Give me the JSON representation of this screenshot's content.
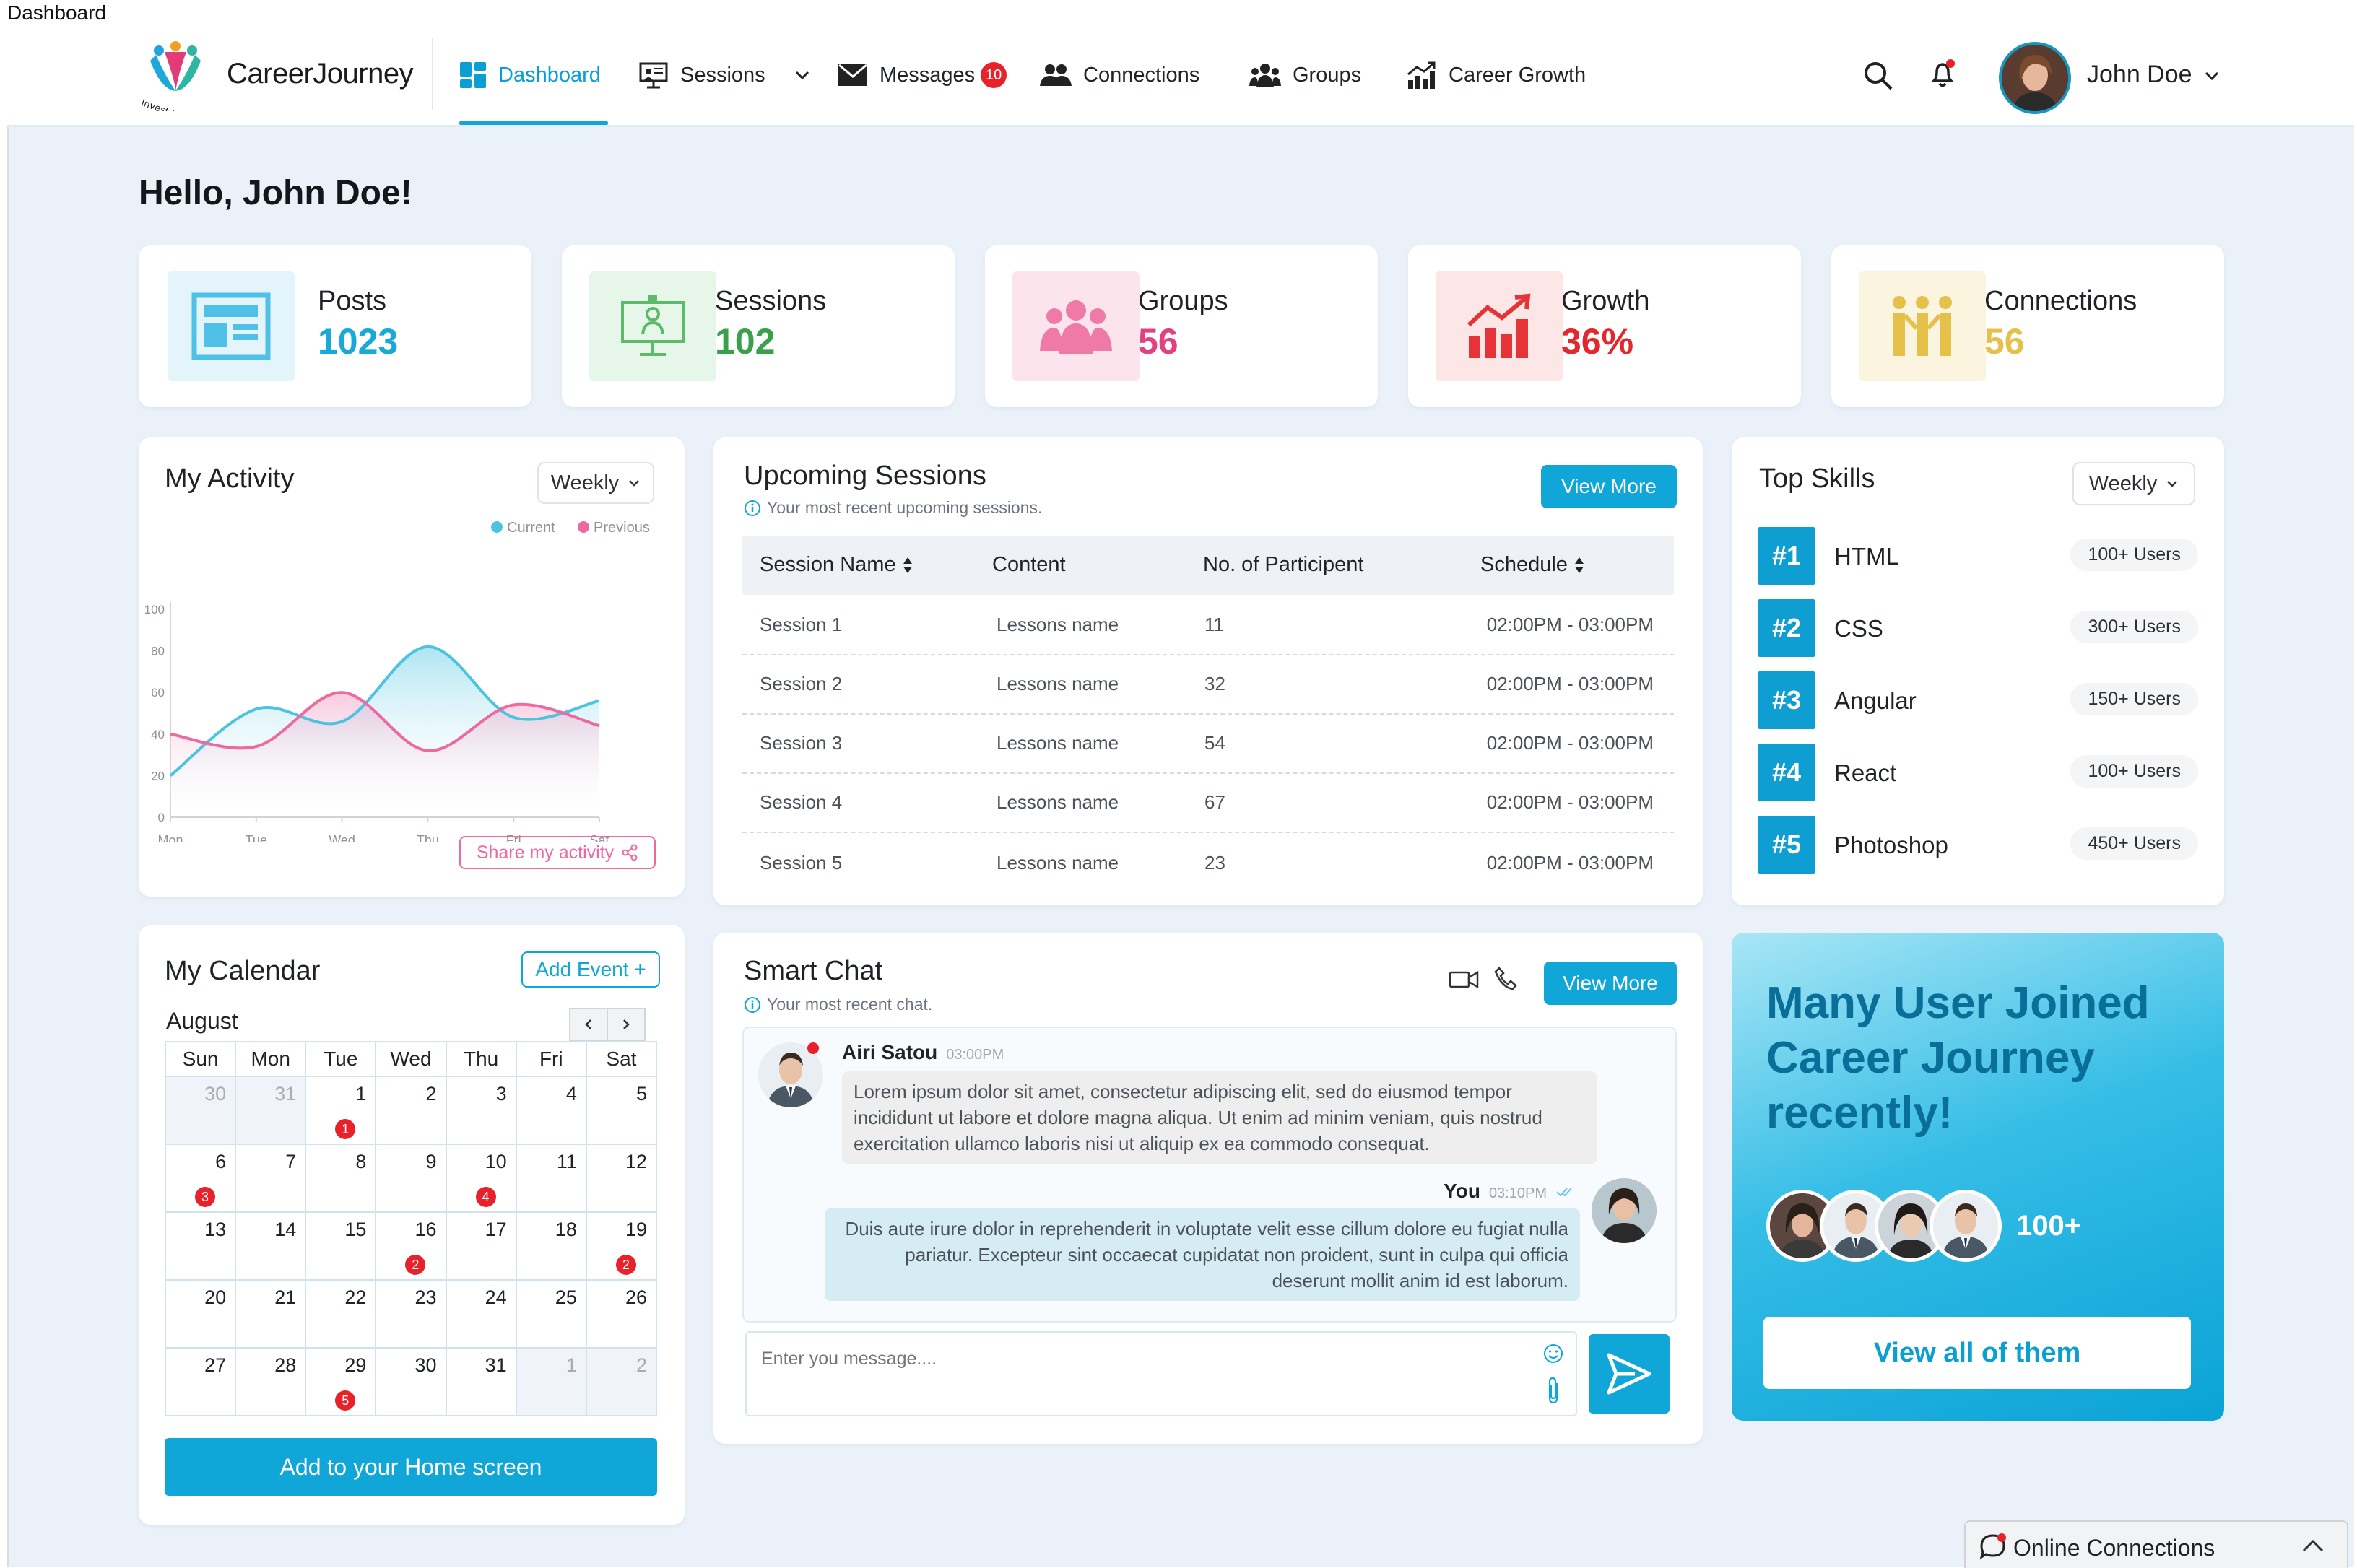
{
  "window": {
    "title": "Dashboard"
  },
  "brand": {
    "name": "CareerJourney",
    "tagline": "Invest to Impact"
  },
  "nav": {
    "items": [
      {
        "label": "Dashboard"
      },
      {
        "label": "Sessions"
      },
      {
        "label": "Messages",
        "badge": "10"
      },
      {
        "label": "Connections"
      },
      {
        "label": "Groups"
      },
      {
        "label": "Career Growth"
      }
    ]
  },
  "user": {
    "name": "John Doe"
  },
  "greeting": "Hello, John Doe!",
  "stats": [
    {
      "label": "Posts",
      "value": "1023",
      "color": "#17a9d8",
      "icon": "newspaper-icon"
    },
    {
      "label": "Sessions",
      "value": "102",
      "color": "#3aa14a",
      "icon": "presentation-icon"
    },
    {
      "label": "Groups",
      "value": "56",
      "color": "#e4407f",
      "icon": "group-icon"
    },
    {
      "label": "Growth",
      "value": "36%",
      "color": "#e0282e",
      "icon": "growth-chart-icon"
    },
    {
      "label": "Connections",
      "value": "56",
      "color": "#e6c14a",
      "icon": "people-connect-icon"
    }
  ],
  "activity": {
    "title": "My Activity",
    "period": "Weekly",
    "share_label": "Share my activity",
    "chart_data": {
      "type": "area",
      "x": [
        "Mon",
        "Tue",
        "Wed",
        "Thu",
        "Fri",
        "Sat"
      ],
      "yticks": [
        "0",
        "20",
        "40",
        "60",
        "80",
        "100"
      ],
      "ylim": [
        0,
        100
      ],
      "legend": "top-right",
      "series": [
        {
          "name": "Current",
          "color": "#4cc4e0",
          "values": [
            20,
            52,
            46,
            82,
            48,
            56
          ]
        },
        {
          "name": "Previous",
          "color": "#ec6aa0",
          "values": [
            40,
            34,
            60,
            32,
            54,
            44
          ]
        }
      ]
    }
  },
  "sessions": {
    "title": "Upcoming Sessions",
    "subtitle": "Your most recent upcoming sessions.",
    "view_more": "View More",
    "columns": [
      "Session Name",
      "Content",
      "No. of Participent",
      "Schedule"
    ],
    "rows": [
      {
        "name": "Session 1",
        "content": "Lessons name",
        "participants": "11",
        "schedule": "02:00PM - 03:00PM"
      },
      {
        "name": "Session 2",
        "content": "Lessons name",
        "participants": "32",
        "schedule": "02:00PM - 03:00PM"
      },
      {
        "name": "Session 3",
        "content": "Lessons name",
        "participants": "54",
        "schedule": "02:00PM - 03:00PM"
      },
      {
        "name": "Session 4",
        "content": "Lessons name",
        "participants": "67",
        "schedule": "02:00PM - 03:00PM"
      },
      {
        "name": "Session 5",
        "content": "Lessons name",
        "participants": "23",
        "schedule": "02:00PM - 03:00PM"
      }
    ]
  },
  "skills": {
    "title": "Top Skills",
    "period": "Weekly",
    "items": [
      {
        "rank": "#1",
        "name": "HTML",
        "users": "100+ Users"
      },
      {
        "rank": "#2",
        "name": "CSS",
        "users": "300+ Users"
      },
      {
        "rank": "#3",
        "name": "Angular",
        "users": "150+ Users"
      },
      {
        "rank": "#4",
        "name": "React",
        "users": "100+ Users"
      },
      {
        "rank": "#5",
        "name": "Photoshop",
        "users": "450+ Users"
      }
    ]
  },
  "calendar": {
    "title": "My Calendar",
    "add_event": "Add Event +",
    "month": "August",
    "weekdays": [
      "Sun",
      "Mon",
      "Tue",
      "Wed",
      "Thu",
      "Fri",
      "Sat"
    ],
    "weeks": [
      [
        {
          "d": "30",
          "m": true
        },
        {
          "d": "31",
          "m": true
        },
        {
          "d": "1",
          "b": "1"
        },
        {
          "d": "2"
        },
        {
          "d": "3"
        },
        {
          "d": "4"
        },
        {
          "d": "5"
        }
      ],
      [
        {
          "d": "6",
          "b": "3"
        },
        {
          "d": "7"
        },
        {
          "d": "8"
        },
        {
          "d": "9"
        },
        {
          "d": "10",
          "b": "4"
        },
        {
          "d": "11"
        },
        {
          "d": "12"
        }
      ],
      [
        {
          "d": "13"
        },
        {
          "d": "14"
        },
        {
          "d": "15"
        },
        {
          "d": "16",
          "b": "2"
        },
        {
          "d": "17"
        },
        {
          "d": "18"
        },
        {
          "d": "19",
          "b": "2"
        }
      ],
      [
        {
          "d": "20"
        },
        {
          "d": "21"
        },
        {
          "d": "22"
        },
        {
          "d": "23"
        },
        {
          "d": "24"
        },
        {
          "d": "25"
        },
        {
          "d": "26"
        }
      ],
      [
        {
          "d": "27"
        },
        {
          "d": "28"
        },
        {
          "d": "29",
          "b": "5"
        },
        {
          "d": "30"
        },
        {
          "d": "31"
        },
        {
          "d": "1",
          "m": true
        },
        {
          "d": "2",
          "m": true
        }
      ]
    ],
    "home_button": "Add to your Home screen"
  },
  "chat": {
    "title": "Smart Chat",
    "subtitle": "Your most recent chat.",
    "view_more": "View More",
    "messages": [
      {
        "sender": "Airi Satou",
        "time": "03:00PM",
        "text": "Lorem ipsum dolor sit amet, consectetur adipiscing elit, sed do eiusmod tempor incididunt ut labore et dolore magna aliqua. Ut enim ad minim veniam, quis nostrud exercitation ullamco laboris nisi ut aliquip ex ea commodo consequat."
      },
      {
        "sender": "You",
        "time": "03:10PM",
        "text": "Duis aute irure dolor in reprehenderit in voluptate velit esse cillum dolore eu fugiat nulla pariatur. Excepteur sint occaecat cupidatat non proident, sunt in culpa qui officia deserunt mollit anim id est laborum."
      }
    ],
    "input_placeholder": "Enter you message...."
  },
  "promo": {
    "headline": "Many User Joined Career Journey recently!",
    "count": "100+",
    "button": "View all of them"
  },
  "online": {
    "label": "Online Connections"
  }
}
